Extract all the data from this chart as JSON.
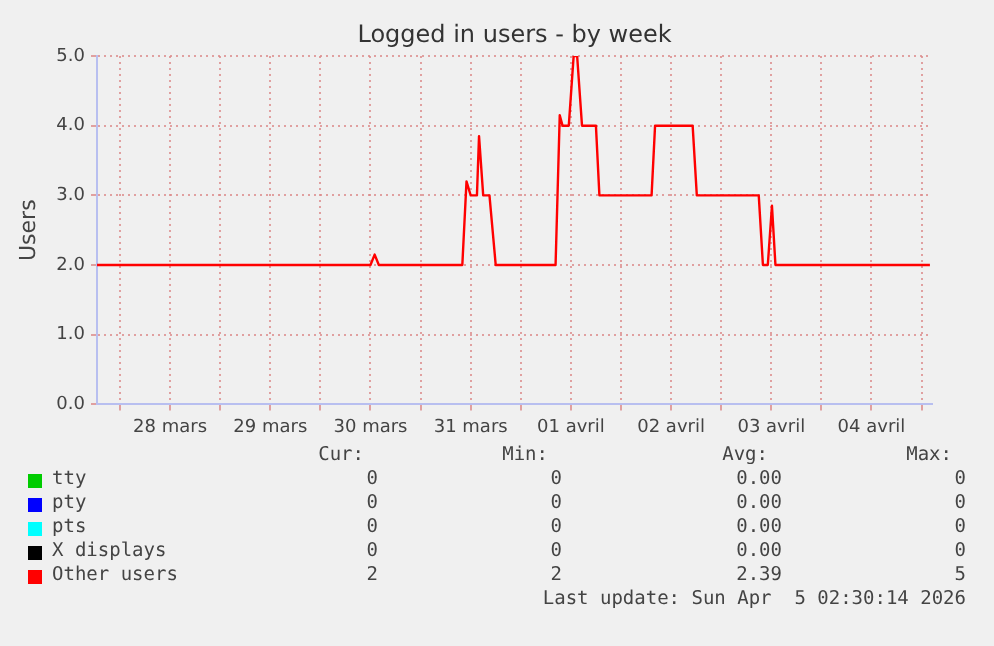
{
  "chart_data": {
    "type": "line",
    "title": "Logged in users - by week",
    "ylabel": "Users",
    "xlim": [
      "2026-03-27T18:30",
      "2026-04-05T02:30"
    ],
    "xticks": [
      {
        "value": "2026-03-28T00:00",
        "label": null
      },
      {
        "value": "2026-03-28T12:00",
        "label": "28 mars"
      },
      {
        "value": "2026-03-29T00:00",
        "label": null
      },
      {
        "value": "2026-03-29T12:00",
        "label": "29 mars"
      },
      {
        "value": "2026-03-30T00:00",
        "label": null
      },
      {
        "value": "2026-03-30T12:00",
        "label": "30 mars"
      },
      {
        "value": "2026-03-31T00:00",
        "label": null
      },
      {
        "value": "2026-03-31T12:00",
        "label": "31 mars"
      },
      {
        "value": "2026-04-01T00:00",
        "label": null
      },
      {
        "value": "2026-04-01T12:00",
        "label": "01 avril"
      },
      {
        "value": "2026-04-02T00:00",
        "label": null
      },
      {
        "value": "2026-04-02T12:00",
        "label": "02 avril"
      },
      {
        "value": "2026-04-03T00:00",
        "label": null
      },
      {
        "value": "2026-04-03T12:00",
        "label": "03 avril"
      },
      {
        "value": "2026-04-04T00:00",
        "label": null
      },
      {
        "value": "2026-04-04T12:00",
        "label": "04 avril"
      },
      {
        "value": "2026-04-05T00:00",
        "label": null
      }
    ],
    "ylim": [
      0,
      5
    ],
    "yticks": [
      {
        "value": 0,
        "label": "0.0"
      },
      {
        "value": 1,
        "label": "1.0"
      },
      {
        "value": 2,
        "label": "2.0"
      },
      {
        "value": 3,
        "label": "3.0"
      },
      {
        "value": 4,
        "label": "4.0"
      },
      {
        "value": 5,
        "label": "5.0"
      }
    ],
    "grid": true,
    "legend": "bottom",
    "marker": "none",
    "line_style": "solid",
    "series": [
      {
        "name": "tty",
        "color": "#00cc00"
      },
      {
        "name": "pty",
        "color": "#0000ff"
      },
      {
        "name": "pts",
        "color": "#00ffff"
      },
      {
        "name": "X displays",
        "color": "#000000"
      },
      {
        "name": "Other users",
        "color": "#ff0000",
        "x": [
          "2026-03-27T18:30",
          "2026-03-30T12:00",
          "2026-03-30T13:00",
          "2026-03-30T14:00",
          "2026-03-31T10:00",
          "2026-03-31T11:00",
          "2026-03-31T12:00",
          "2026-03-31T13:30",
          "2026-03-31T14:00",
          "2026-03-31T15:00",
          "2026-03-31T16:30",
          "2026-03-31T18:00",
          "2026-04-01T08:20",
          "2026-04-01T09:20",
          "2026-04-01T10:00",
          "2026-04-01T11:30",
          "2026-04-01T12:40",
          "2026-04-01T13:30",
          "2026-04-01T14:40",
          "2026-04-01T18:00",
          "2026-04-01T18:50",
          "2026-04-02T07:20",
          "2026-04-02T08:10",
          "2026-04-02T17:10",
          "2026-04-02T18:10",
          "2026-04-03T09:00",
          "2026-04-03T10:00",
          "2026-04-03T11:10",
          "2026-04-03T12:10",
          "2026-04-03T13:00",
          "2026-04-05T02:00"
        ],
        "values": [
          2,
          2,
          2.15,
          2,
          2,
          3.2,
          3,
          3,
          3.85,
          3,
          3,
          2,
          2,
          4.15,
          4,
          4,
          5,
          5,
          4,
          4,
          3,
          3,
          4,
          4,
          3,
          3,
          2,
          2,
          2.85,
          2,
          2
        ]
      }
    ],
    "annotations": [
      "Cur:",
      "Min:",
      "Avg:",
      "Max:",
      "0",
      "0",
      "0.00",
      "0",
      "0",
      "0",
      "0.00",
      "0",
      "0",
      "0",
      "0.00",
      "0",
      "0",
      "0",
      "0.00",
      "0",
      "2",
      "2",
      "2.39",
      "5",
      "Last update: Sun Apr  5 02:30:14 2026"
    ]
  }
}
